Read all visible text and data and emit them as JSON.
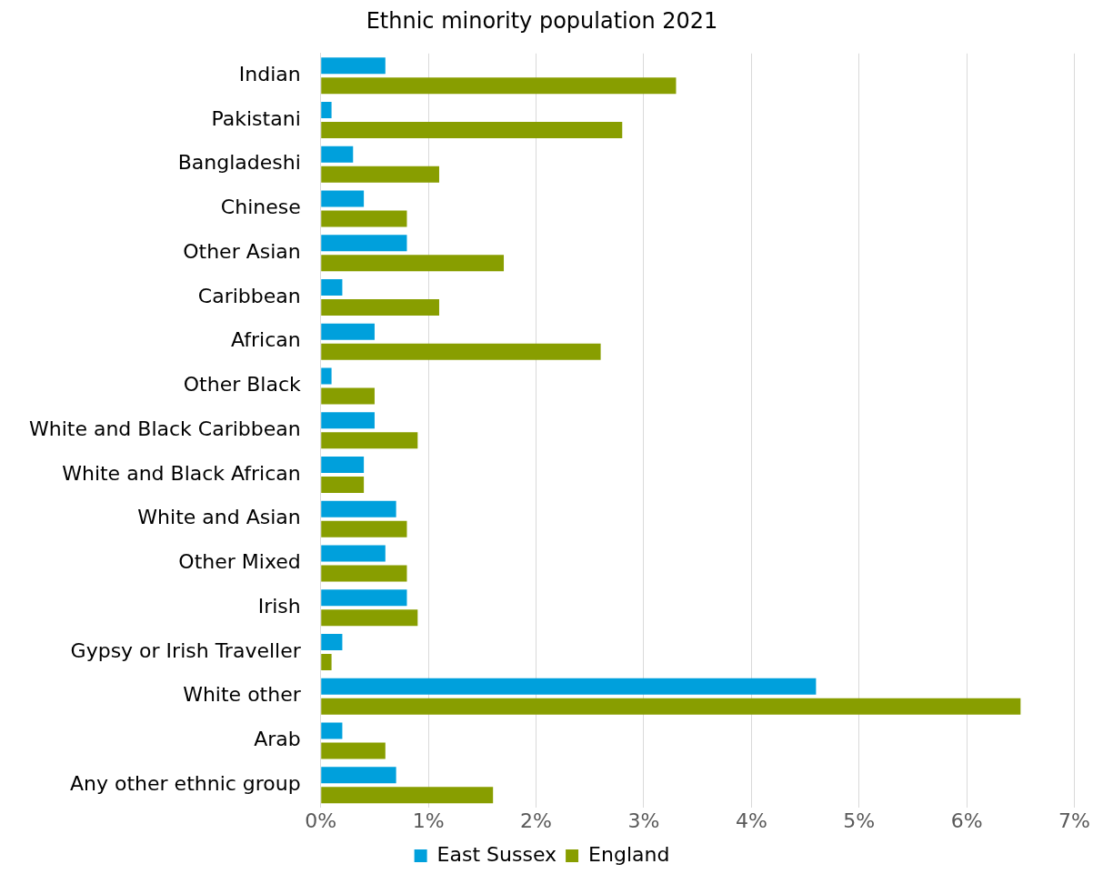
{
  "chart_data": {
    "type": "bar",
    "title": "Ethnic minority population 2021",
    "orientation": "horizontal",
    "categories": [
      "Indian",
      "Pakistani",
      "Bangladeshi",
      "Chinese",
      "Other Asian",
      "Caribbean",
      "African",
      "Other Black",
      "White and Black Caribbean",
      "White and Black African",
      "White and Asian",
      "Other Mixed",
      "Irish",
      "Gypsy or Irish Traveller",
      "White other",
      "Arab",
      "Any other ethnic group"
    ],
    "series": [
      {
        "name": "East Sussex",
        "color": "#00a0dc",
        "values": [
          0.6,
          0.1,
          0.3,
          0.4,
          0.8,
          0.2,
          0.5,
          0.1,
          0.5,
          0.4,
          0.7,
          0.6,
          0.8,
          0.2,
          4.6,
          0.2,
          0.7
        ]
      },
      {
        "name": "England",
        "color": "#889e00",
        "values": [
          3.3,
          2.8,
          1.1,
          0.8,
          1.7,
          1.1,
          2.6,
          0.5,
          0.9,
          0.4,
          0.8,
          0.8,
          0.9,
          0.1,
          6.5,
          0.6,
          1.6
        ]
      }
    ],
    "xlim": [
      0,
      7
    ],
    "xticks": [
      {
        "value": 0,
        "label": "0%"
      },
      {
        "value": 1,
        "label": "1%"
      },
      {
        "value": 2,
        "label": "2%"
      },
      {
        "value": 3,
        "label": "3%"
      },
      {
        "value": 4,
        "label": "4%"
      },
      {
        "value": 5,
        "label": "5%"
      },
      {
        "value": 6,
        "label": "6%"
      },
      {
        "value": 7,
        "label": "7%"
      }
    ],
    "grid": "x",
    "legend": "bottom"
  }
}
